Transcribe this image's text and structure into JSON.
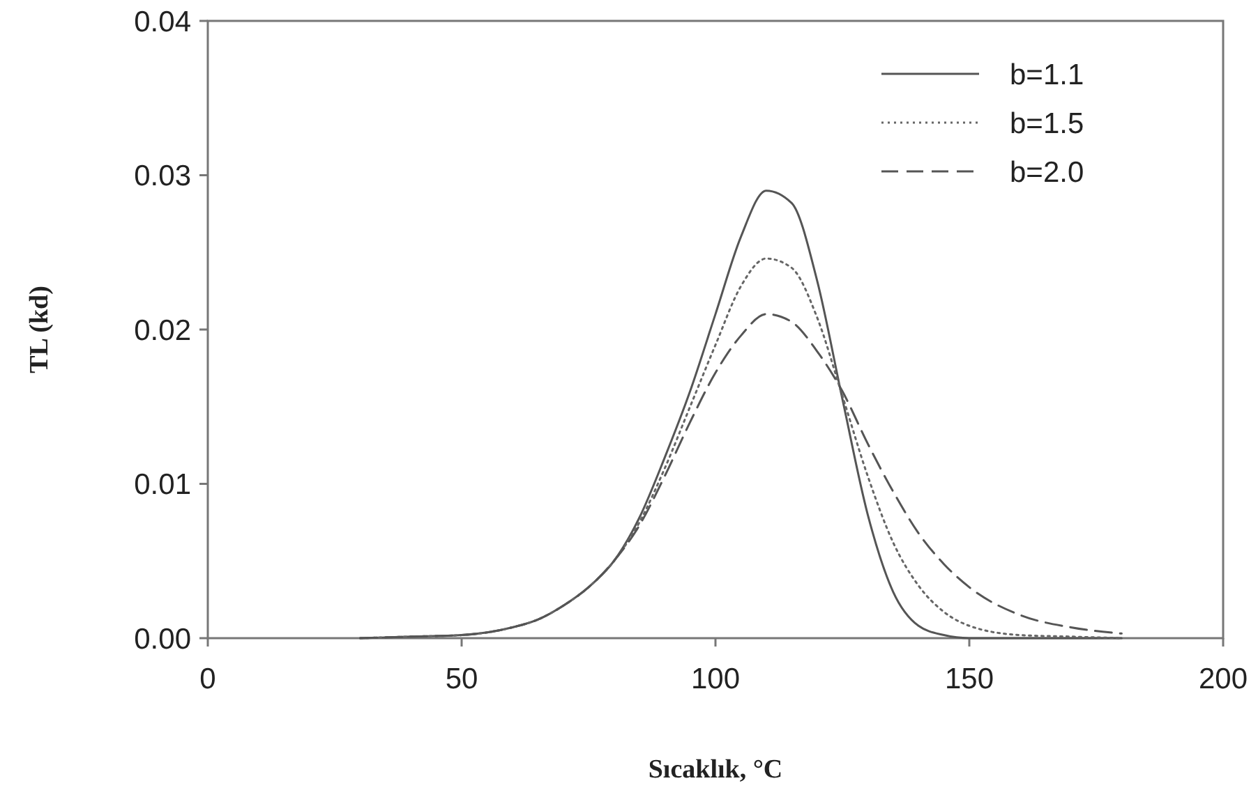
{
  "chart_data": {
    "type": "line",
    "xlabel": "Sıcaklık, °C",
    "ylabel": "TL (kd)",
    "x": [
      30,
      40,
      50,
      60,
      65,
      70,
      75,
      80,
      85,
      90,
      95,
      100,
      105,
      110,
      115,
      120,
      125,
      130,
      135,
      140,
      145,
      150,
      160,
      170,
      180
    ],
    "series": [
      {
        "name": "b=1.1",
        "color": "#555555",
        "line_style": "solid",
        "values": [
          0,
          0.0001,
          0.0002,
          0.0007,
          0.0012,
          0.0021,
          0.0033,
          0.005,
          0.0078,
          0.0117,
          0.016,
          0.021,
          0.026,
          0.029,
          0.0282,
          0.0232,
          0.0155,
          0.008,
          0.003,
          0.0008,
          0.0002,
          0,
          0,
          0,
          0
        ]
      },
      {
        "name": "b=1.5",
        "color": "#666666",
        "line_style": "dotted",
        "values": [
          0,
          0.0001,
          0.0002,
          0.0007,
          0.0012,
          0.0021,
          0.0033,
          0.005,
          0.0075,
          0.011,
          0.015,
          0.019,
          0.0228,
          0.0246,
          0.024,
          0.0208,
          0.0157,
          0.0105,
          0.0062,
          0.0034,
          0.0017,
          0.0008,
          0.0002,
          0.0001,
          0
        ]
      },
      {
        "name": "b=2.0",
        "color": "#555555",
        "line_style": "dashed",
        "values": [
          0,
          0.0001,
          0.0002,
          0.0007,
          0.0012,
          0.0021,
          0.0033,
          0.005,
          0.0073,
          0.0105,
          0.014,
          0.0172,
          0.0196,
          0.021,
          0.0205,
          0.0186,
          0.016,
          0.0126,
          0.0095,
          0.0068,
          0.0048,
          0.0033,
          0.0015,
          0.0007,
          0.0003
        ]
      }
    ],
    "xlim": [
      0,
      200
    ],
    "xticks": [
      0,
      50,
      100,
      150,
      200
    ],
    "ylim": [
      0,
      0.04
    ],
    "yticks": [
      {
        "value": 0,
        "label": "0.00"
      },
      {
        "value": 0.01,
        "label": "0.01"
      },
      {
        "value": 0.02,
        "label": "0.02"
      },
      {
        "value": 0.03,
        "label": "0.03"
      },
      {
        "value": 0.04,
        "label": "0.04"
      }
    ],
    "legend": "top right"
  }
}
